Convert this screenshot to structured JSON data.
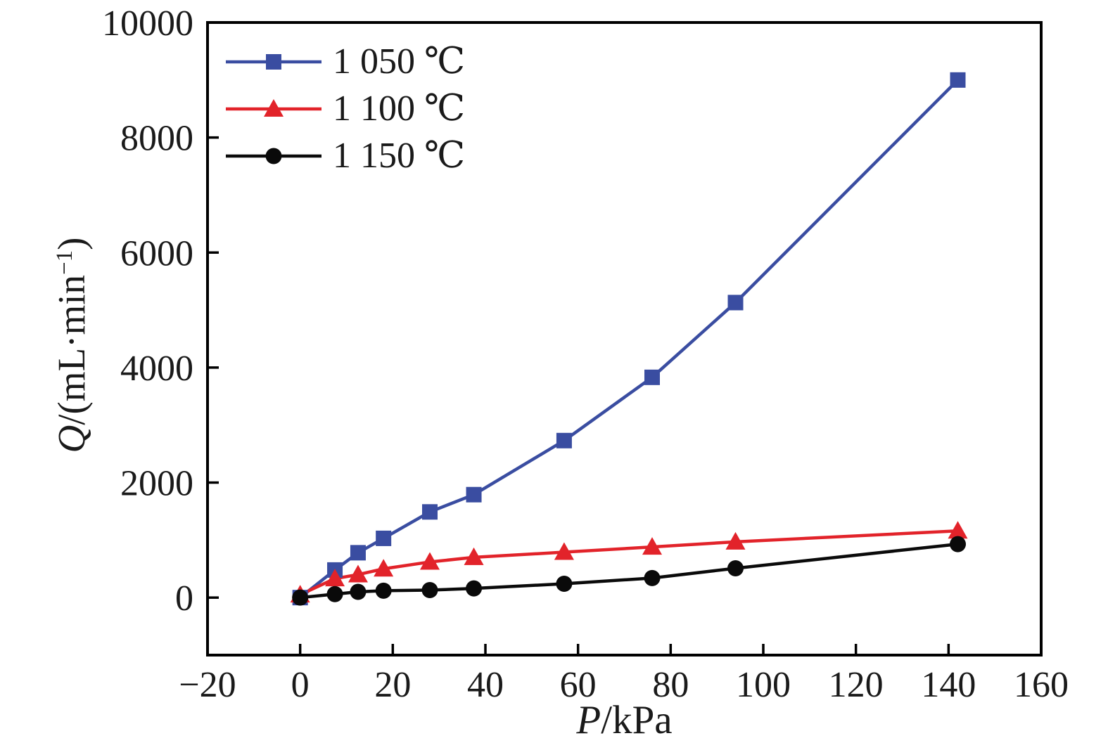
{
  "chart_data": {
    "type": "line",
    "title": "",
    "xlabel": "P/kPa",
    "xlabel_var": "P",
    "xlabel_unit": "/kPa",
    "ylabel": "Q/(mL·min−1)",
    "ylabel_var": "Q",
    "ylabel_unit_pre": "/(mL·min",
    "ylabel_sup": "−1",
    "ylabel_unit_post": ")",
    "xlim": [
      -20,
      160
    ],
    "ylim": [
      -1000,
      10000
    ],
    "xticks": [
      -20,
      0,
      20,
      40,
      60,
      80,
      100,
      120,
      140,
      160
    ],
    "yticks": [
      0,
      2000,
      4000,
      6000,
      8000,
      10000
    ],
    "grid": false,
    "legend_position": "top-left-inside",
    "axis_color": "#000000",
    "x": [
      0,
      7.5,
      12.5,
      18,
      28,
      37.5,
      57,
      76,
      94,
      142
    ],
    "series": [
      {
        "name": "1 050 ℃",
        "color": "#3a4da1",
        "marker": "square",
        "values": [
          0,
          480,
          780,
          1030,
          1490,
          1790,
          2730,
          3830,
          5130,
          9000
        ]
      },
      {
        "name": "1 100 ℃",
        "color": "#e2232a",
        "marker": "triangle",
        "values": [
          50,
          330,
          400,
          500,
          620,
          700,
          790,
          880,
          970,
          1160
        ]
      },
      {
        "name": "1 150 ℃",
        "color": "#0a0a0a",
        "marker": "circle",
        "values": [
          0,
          60,
          100,
          120,
          130,
          160,
          240,
          340,
          510,
          930
        ]
      }
    ]
  }
}
